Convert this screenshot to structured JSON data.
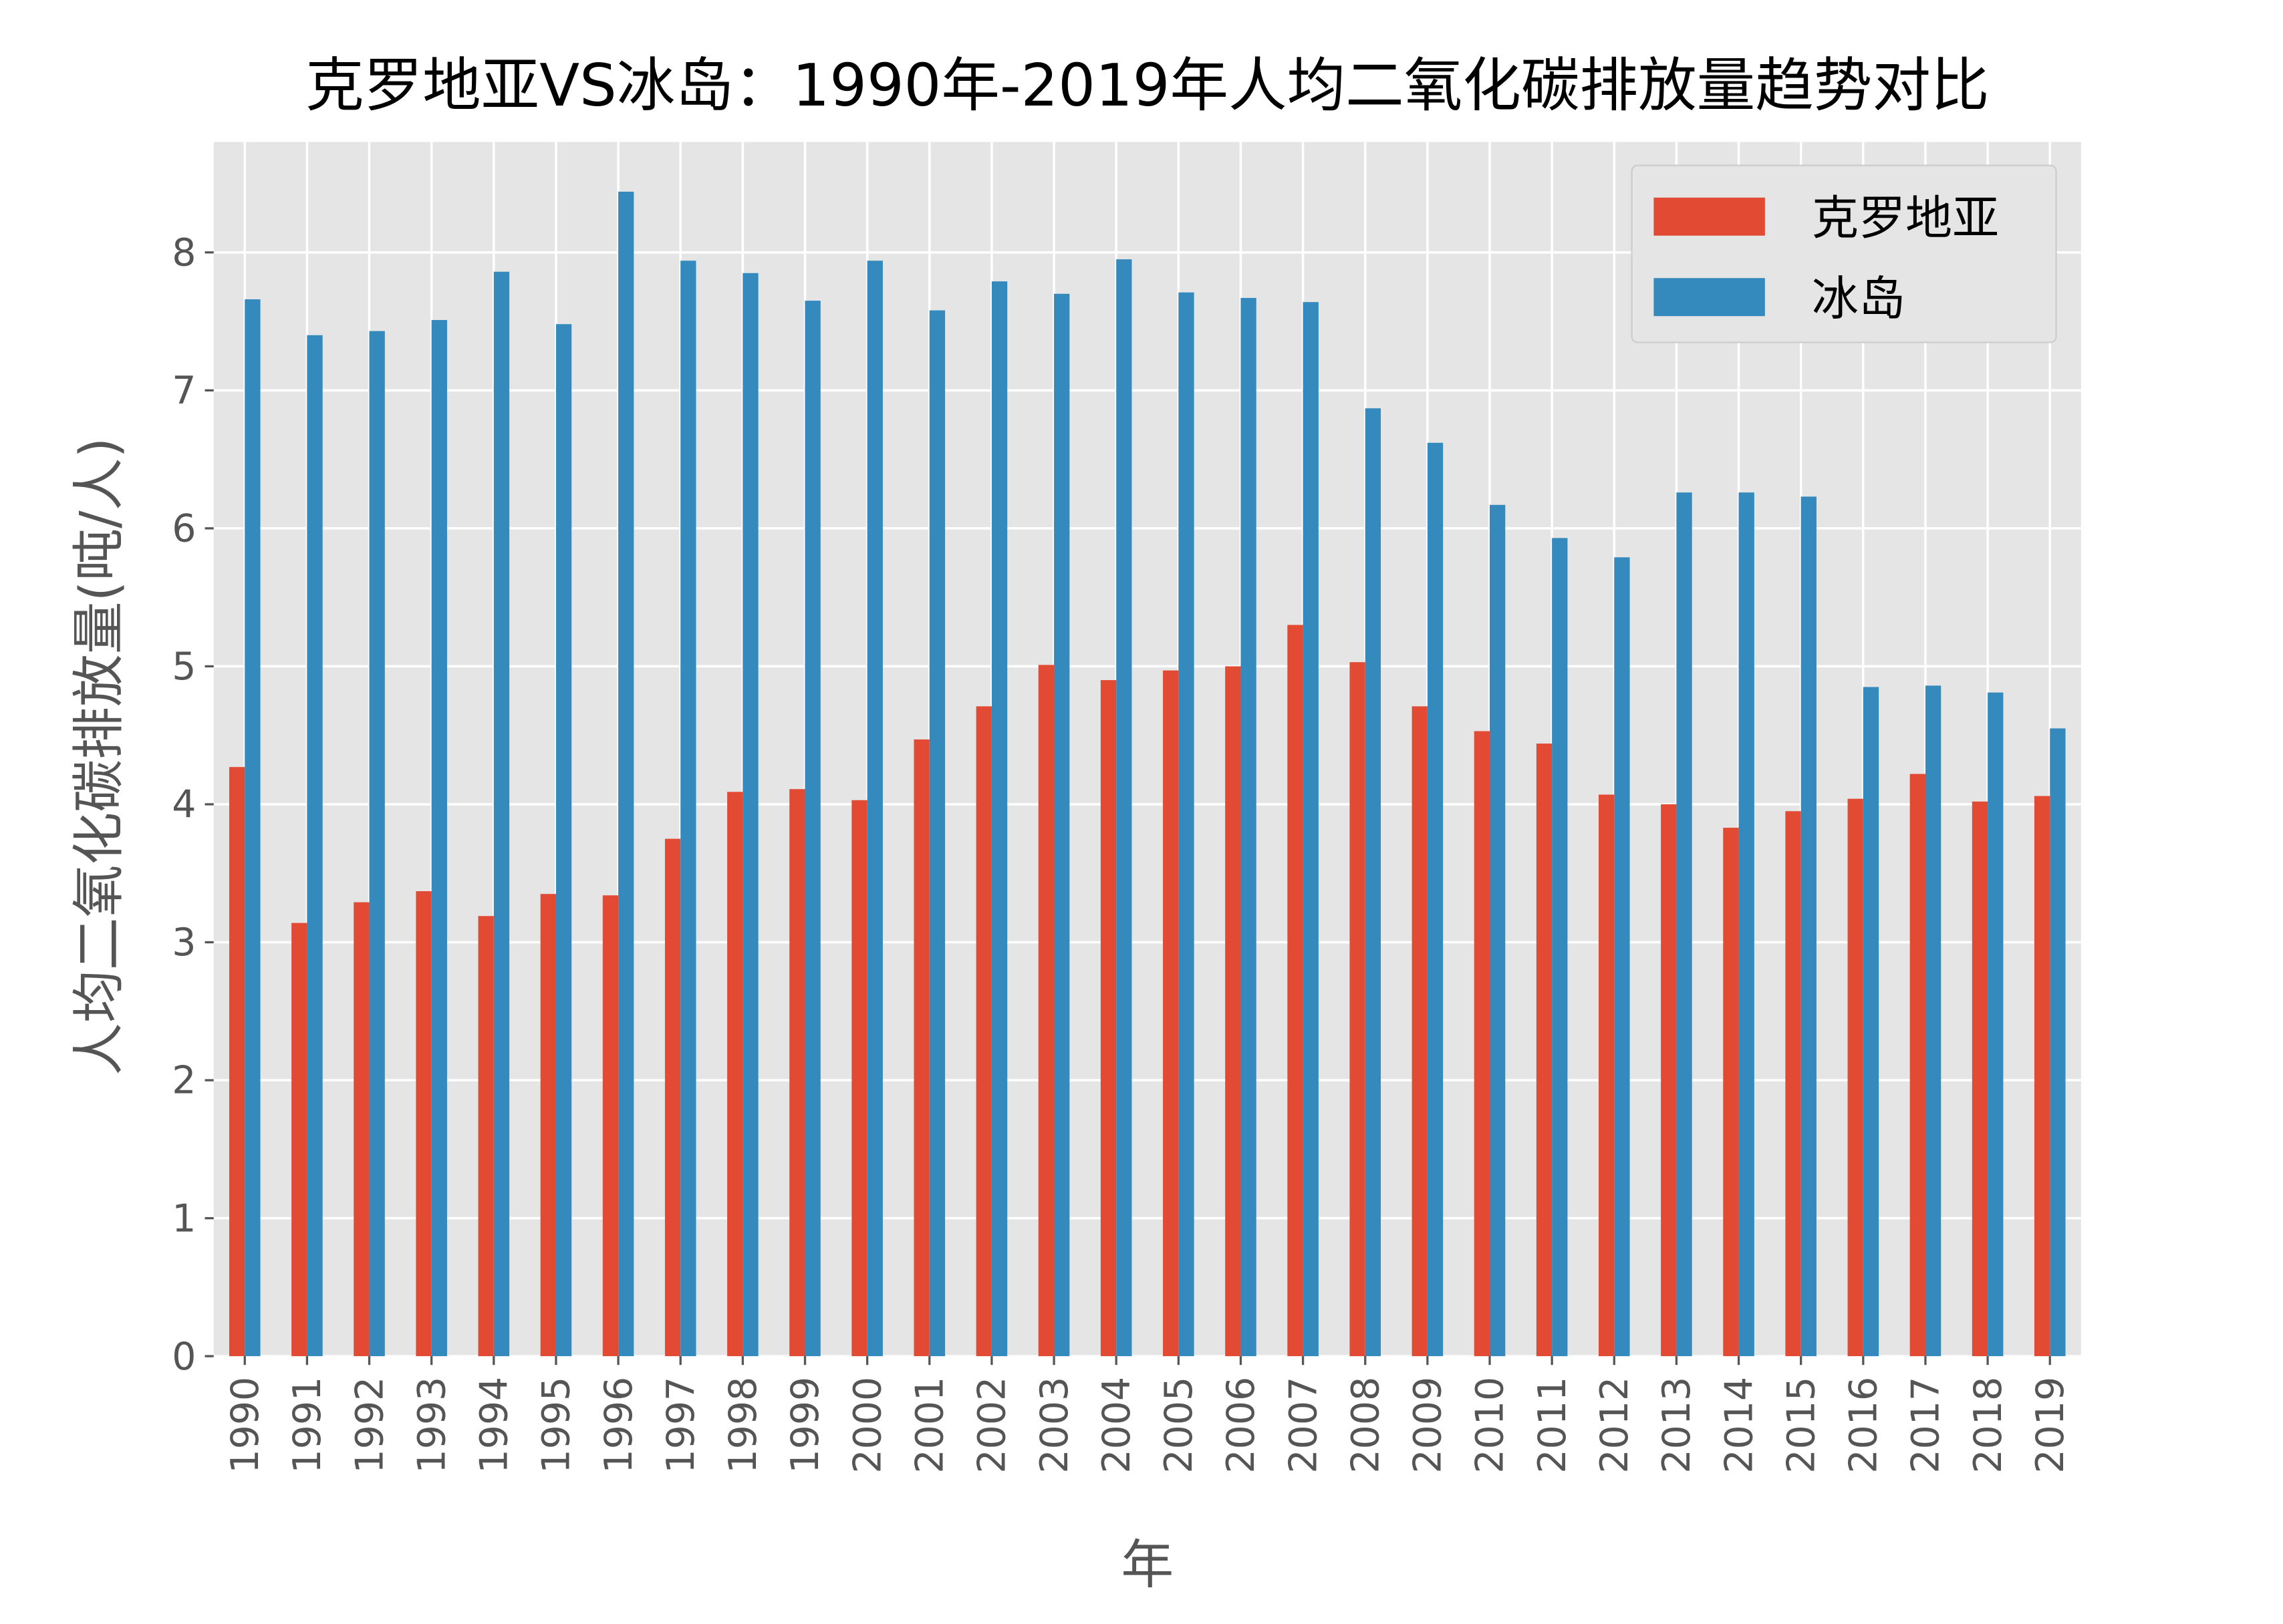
{
  "chart_data": {
    "type": "bar",
    "title": "克罗地亚VS冰岛：1990年-2019年人均二氧化碳排放量趋势对比",
    "xlabel": "年",
    "ylabel": "人均二氧化碳排放量(吨/人)",
    "ylim": [
      0,
      8.8
    ],
    "yticks": [
      0,
      1,
      2,
      3,
      4,
      5,
      6,
      7,
      8
    ],
    "grid": true,
    "legend_position": "top-right",
    "background": "#E5E5E5",
    "categories": [
      "1990",
      "1991",
      "1992",
      "1993",
      "1994",
      "1995",
      "1996",
      "1997",
      "1998",
      "1999",
      "2000",
      "2001",
      "2002",
      "2003",
      "2004",
      "2005",
      "2006",
      "2007",
      "2008",
      "2009",
      "2010",
      "2011",
      "2012",
      "2013",
      "2014",
      "2015",
      "2016",
      "2017",
      "2018",
      "2019"
    ],
    "series": [
      {
        "name": "克罗地亚",
        "color": "#E24A33",
        "values": [
          4.27,
          3.14,
          3.29,
          3.37,
          3.19,
          3.35,
          3.34,
          3.75,
          4.09,
          4.11,
          4.03,
          4.47,
          4.71,
          5.01,
          4.9,
          4.97,
          5.0,
          5.3,
          5.03,
          4.71,
          4.53,
          4.44,
          4.07,
          4.0,
          3.83,
          3.95,
          4.04,
          4.22,
          4.02,
          4.06
        ]
      },
      {
        "name": "冰岛",
        "color": "#348ABD",
        "values": [
          7.66,
          7.4,
          7.43,
          7.51,
          7.86,
          7.48,
          8.44,
          7.94,
          7.85,
          7.65,
          7.94,
          7.58,
          7.79,
          7.7,
          7.95,
          7.71,
          7.67,
          7.64,
          6.87,
          6.62,
          6.17,
          5.93,
          5.79,
          6.26,
          6.26,
          6.23,
          4.85,
          4.86,
          4.81,
          4.55
        ]
      }
    ]
  }
}
